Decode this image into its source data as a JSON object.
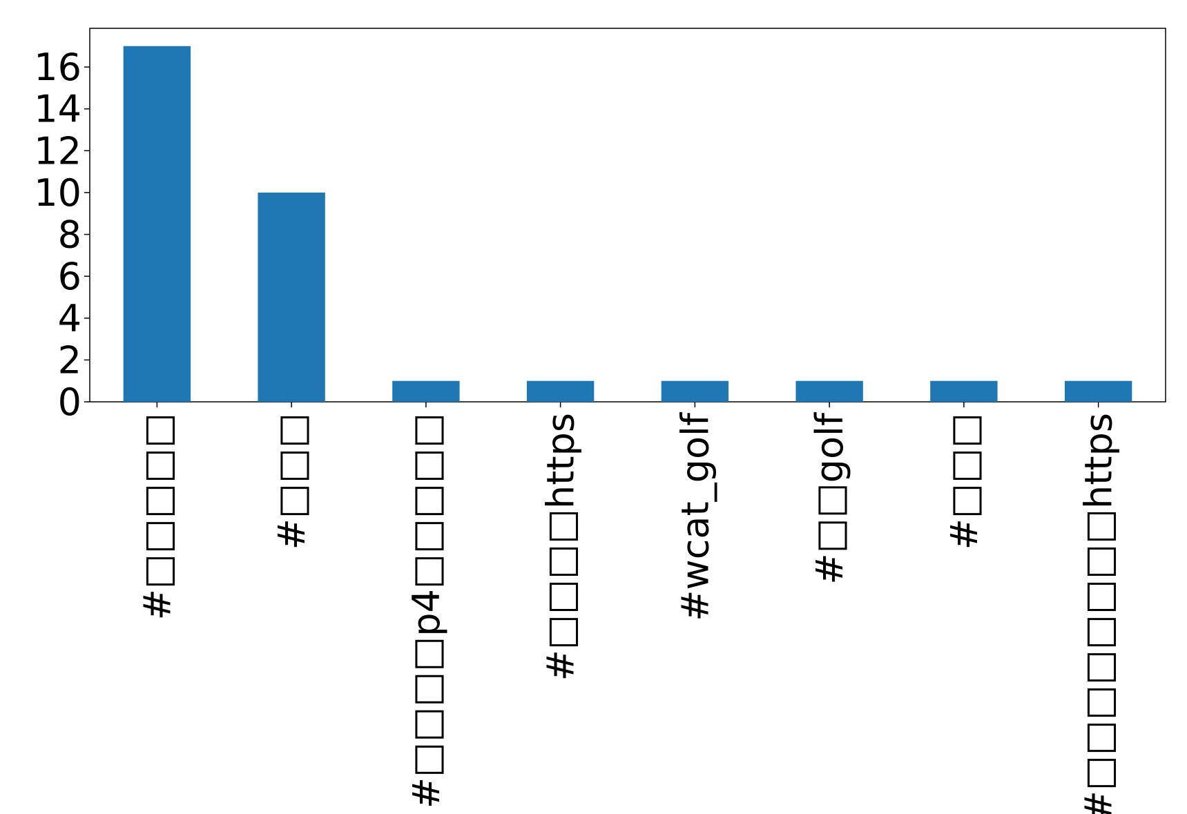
{
  "chart_data": {
    "type": "bar",
    "categories": [
      "#□□□□□",
      "#□□□",
      "#□□□□p4□□□□□",
      "#□□□□https",
      "#wcat_golf",
      "#□□golf",
      "#□□□",
      "#□□□□□□□□https"
    ],
    "values": [
      17,
      10,
      1,
      1,
      1,
      1,
      1,
      1
    ],
    "color": "#1f77b4",
    "ylim": [
      0,
      17.85
    ],
    "yticks": [
      0,
      2,
      4,
      6,
      8,
      10,
      12,
      14,
      16
    ],
    "grid": false
  }
}
